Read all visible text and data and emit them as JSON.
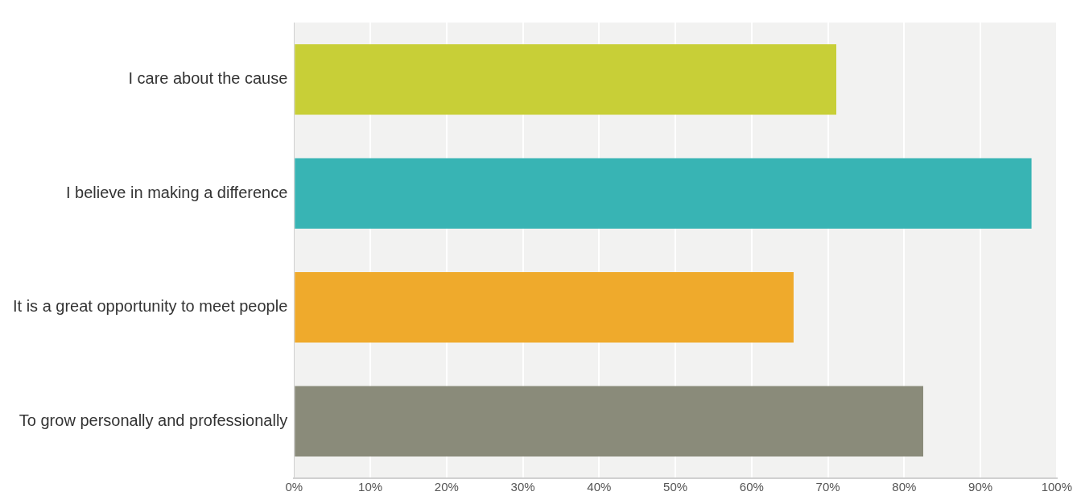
{
  "chart_data": {
    "type": "bar",
    "orientation": "horizontal",
    "categories": [
      "I care about the cause",
      "I believe in making a difference",
      "It is a great opportunity to meet people",
      "To grow personally and professionally"
    ],
    "values": [
      71.1,
      96.7,
      65.5,
      82.5
    ],
    "colors": [
      "#c8cf37",
      "#38b4b4",
      "#efaa2c",
      "#8a8b7a"
    ],
    "xlim": [
      0,
      100
    ],
    "xticks": [
      {
        "value": 0,
        "label": "0%"
      },
      {
        "value": 10,
        "label": "10%"
      },
      {
        "value": 20,
        "label": "20%"
      },
      {
        "value": 30,
        "label": "30%"
      },
      {
        "value": 40,
        "label": "40%"
      },
      {
        "value": 50,
        "label": "50%"
      },
      {
        "value": 60,
        "label": "60%"
      },
      {
        "value": 70,
        "label": "70%"
      },
      {
        "value": 80,
        "label": "80%"
      },
      {
        "value": 90,
        "label": "90%"
      },
      {
        "value": 100,
        "label": "100%"
      }
    ],
    "grid": "x",
    "legend": false
  }
}
